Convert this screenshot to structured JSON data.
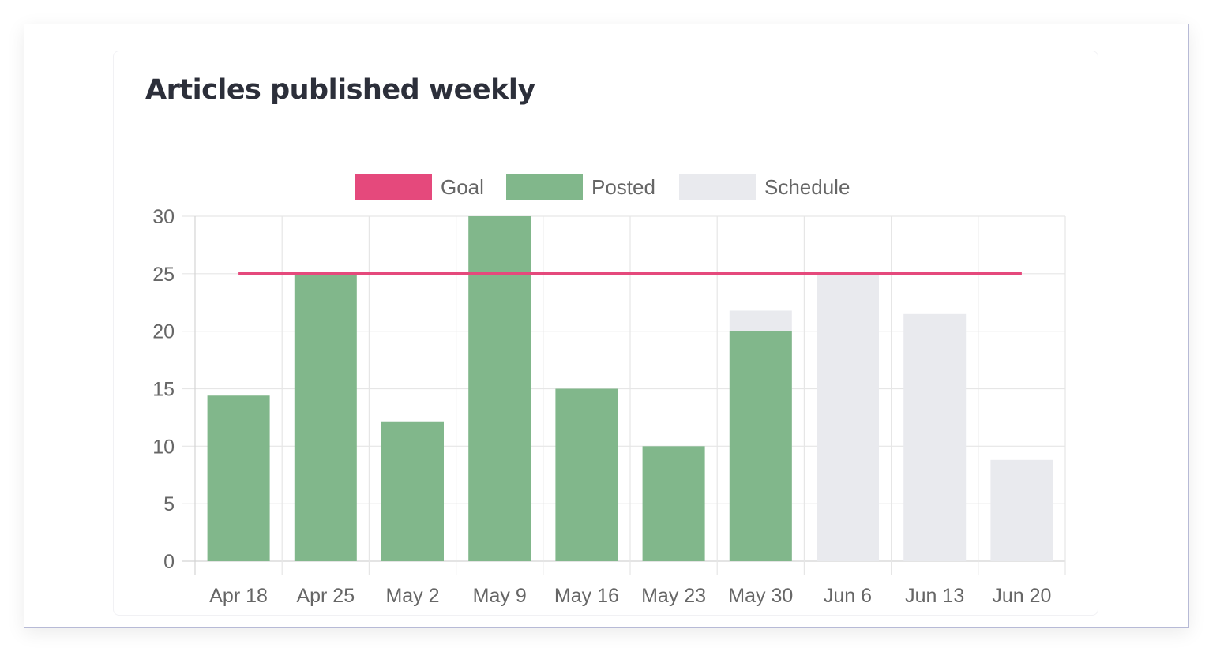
{
  "card": {
    "title": "Articles published weekly"
  },
  "colors": {
    "goal": "#e5497c",
    "posted": "#81b78b",
    "schedule": "#e9eaee",
    "grid": "#e6e6e6",
    "text": "#666666"
  },
  "chart_data": {
    "type": "bar",
    "title": "Articles published weekly",
    "xlabel": "",
    "ylabel": "",
    "ylim": [
      0,
      30
    ],
    "yticks": [
      0,
      5,
      10,
      15,
      20,
      25,
      30
    ],
    "categories": [
      "Apr 18",
      "Apr 25",
      "May 2",
      "May 9",
      "May 16",
      "May 23",
      "May 30",
      "Jun 6",
      "Jun 13",
      "Jun 20"
    ],
    "series": [
      {
        "name": "Goal",
        "kind": "line",
        "values": [
          25,
          25,
          25,
          25,
          25,
          25,
          25,
          25,
          25,
          25
        ]
      },
      {
        "name": "Posted",
        "kind": "bar",
        "values": [
          14.4,
          25,
          12.1,
          30,
          15,
          10,
          20,
          0,
          0,
          0
        ]
      },
      {
        "name": "Schedule",
        "kind": "bar",
        "values": [
          0,
          0,
          0,
          0,
          0,
          0,
          21.8,
          25,
          21.5,
          8.8
        ]
      }
    ],
    "legend": [
      "Goal",
      "Posted",
      "Schedule"
    ],
    "legend_position": "top-center",
    "grid": true
  }
}
